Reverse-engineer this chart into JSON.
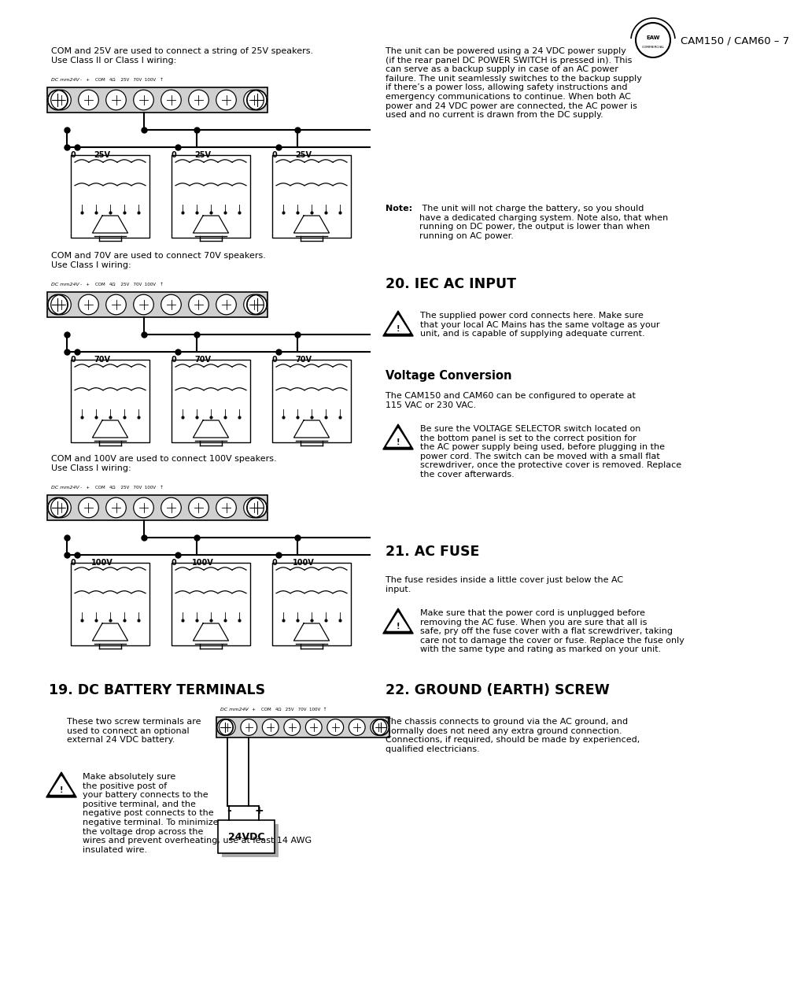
{
  "page_bg": "#ffffff",
  "text": {
    "left1": "COM and 25V are used to connect a string of 25V speakers.\nUse Class II or Class I wiring:",
    "left2": "COM and 70V are used to connect 70V speakers.\nUse Class I wiring:",
    "left3": "COM and 100V are used to connect 100V speakers.\nUse Class I wiring:",
    "right_intro": "The unit can be powered using a 24 VDC power supply\n(if the rear panel DC POWER SWITCH is pressed in). This\ncan serve as a backup supply in case of an AC power\nfailure. The unit seamlessly switches to the backup supply\nif there’s a power loss, allowing safety instructions and\nemergency communications to continue. When both AC\npower and 24 VDC power are connected, the AC power is\nused and no current is drawn from the DC supply.",
    "note": "Note: The unit will not charge the battery, so you should\nhave a dedicated charging system. Note also, that when\nrunning on DC power, the output is lower than when\nrunning on AC power.",
    "sec20_title": "20. IEC AC INPUT",
    "sec20_warn": "The supplied power cord connects here. Make sure\nthat your local AC Mains has the same voltage as your\nunit, and is capable of supplying adequate current.",
    "voltage_title": "Voltage Conversion",
    "voltage_text": "The CAM150 and CAM60 can be configured to operate at\n115 VAC or 230 VAC.",
    "voltage_warn": "Be sure the VOLTAGE SELECTOR switch located on\nthe bottom panel is set to the correct position for\nthe AC power supply being used, before plugging in the\npower cord. The switch can be moved with a small flat\nscrewdriver, once the protective cover is removed. Replace\nthe cover afterwards.",
    "sec21_title": "21. AC FUSE",
    "sec21_text": "The fuse resides inside a little cover just below the AC\ninput.",
    "sec21_warn": "Make sure that the power cord is unplugged before\nremoving the AC fuse. When you are sure that all is\nsafe, pry off the fuse cover with a flat screwdriver, taking\ncare not to damage the cover or fuse. Replace the fuse only\nwith the same type and rating as marked on your unit.",
    "sec22_title": "22. GROUND (EARTH) SCREW",
    "sec22_text": "The chassis connects to ground via the AC ground, and\nnormally does not need any extra ground connection.\nConnections, if required, should be made by experienced,\nqualified electricians.",
    "sec19_title": "19. DC BATTERY TERMINALS",
    "sec19_text": "These two screw terminals are\nused to connect an optional\nexternal 24 VDC battery.",
    "sec19_warn": "Make absolutely sure\nthe positive post of\nyour battery connects to the\npositive terminal, and the\nnegative post connects to the\nnegative terminal. To minimize\nthe voltage drop across the\nwires and prevent overheating, use at least 14 AWG\ninsulated wire.",
    "terminal_label": "DC mm24V\n-   +    COM   4Ω   25V   70V  100V  ↑",
    "footer": "CAM150 / CAM60 – 7"
  },
  "colors": {
    "black": "#000000",
    "white": "#ffffff",
    "light_gray": "#dddddd",
    "mid_gray": "#888888"
  }
}
